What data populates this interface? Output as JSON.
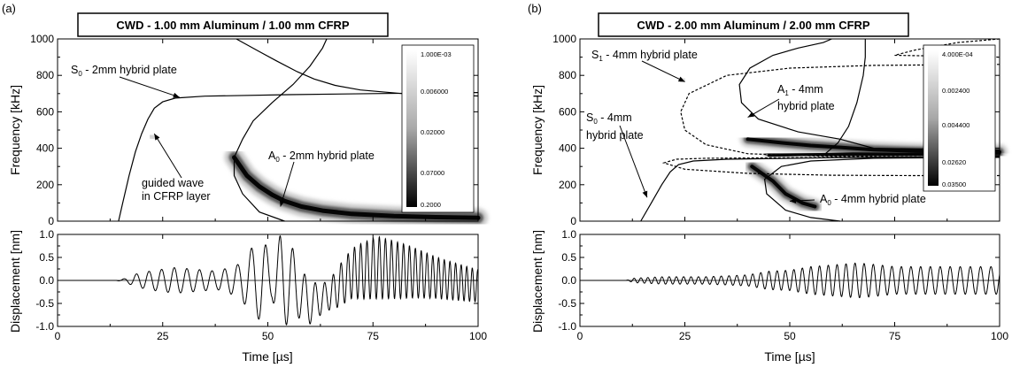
{
  "colors": {
    "axis": "#000000",
    "background": "#ffffff",
    "map_light": "#f2f2f2",
    "map_dark": "#000000"
  },
  "chart_data": [
    {
      "panel_label": "(a)",
      "type": "heatmap",
      "title": "CWD - 1.00 mm Aluminum / 1.00 mm CFRP",
      "xlabel": "Time [µs]",
      "ylabel": "Frequency [kHz]",
      "xlim": [
        0,
        100
      ],
      "ylim": [
        0,
        1000
      ],
      "xticks": [
        0,
        25,
        50,
        75,
        100
      ],
      "yticks": [
        0,
        200,
        400,
        600,
        800,
        1000
      ],
      "colorbar": {
        "labels": [
          "1.000E-03",
          "0.006000",
          "0.02000",
          "0.07000",
          "0.2000"
        ]
      },
      "annotations": [
        {
          "base": "S",
          "sub": "0",
          "rest": " - 2mm hybrid plate",
          "point": [
            29,
            680
          ]
        },
        {
          "base": "A",
          "sub": "0",
          "rest": " - 2mm hybrid plate",
          "point": [
            53,
            80
          ]
        },
        {
          "lines": [
            "guided wave",
            "in CFRP layer"
          ],
          "point": [
            23,
            480
          ]
        }
      ],
      "dispersion_curves": {
        "S0": [
          [
            14.5,
            0
          ],
          [
            15.5,
            100
          ],
          [
            17,
            250
          ],
          [
            18.5,
            380
          ],
          [
            20,
            480
          ],
          [
            21.5,
            560
          ],
          [
            23,
            620
          ],
          [
            25,
            655
          ],
          [
            28,
            675
          ],
          [
            35,
            686
          ],
          [
            55,
            694
          ],
          [
            75,
            700
          ],
          [
            100,
            706
          ]
        ],
        "A0": [
          [
            42.5,
            1000
          ],
          [
            48,
            930
          ],
          [
            52,
            880
          ],
          [
            57,
            820
          ],
          [
            61,
            780
          ],
          [
            66,
            745
          ],
          [
            72,
            720
          ],
          [
            82,
            700
          ],
          [
            100,
            687
          ]
        ],
        "A0_low": [
          [
            54,
            0
          ],
          [
            48,
            50
          ],
          [
            44,
            150
          ],
          [
            42,
            250
          ],
          [
            42,
            350
          ],
          [
            44,
            450
          ],
          [
            46.5,
            550
          ],
          [
            51,
            650
          ],
          [
            56,
            750
          ],
          [
            60,
            850
          ],
          [
            63,
            950
          ],
          [
            64,
            1000
          ]
        ]
      },
      "ridge": [
        [
          42,
          350
        ],
        [
          45,
          250
        ],
        [
          48,
          190
        ],
        [
          51,
          145
        ],
        [
          54,
          110
        ],
        [
          58,
          80
        ],
        [
          63,
          58
        ],
        [
          70,
          40
        ],
        [
          80,
          28
        ],
        [
          90,
          22
        ],
        [
          100,
          18
        ]
      ],
      "spot": [
        [
          22,
          470
        ],
        [
          23,
          455
        ]
      ],
      "displacement": {
        "ylabel": "Displacement [nm]",
        "xlabel": "Time [µs]",
        "xlim": [
          0,
          100
        ],
        "ylim": [
          -1.0,
          1.0
        ],
        "yticks": [
          -1.0,
          -0.5,
          0.0,
          0.5,
          1.0
        ],
        "xticks": [
          0,
          25,
          50,
          75,
          100
        ],
        "envelope": [
          [
            0,
            0
          ],
          [
            14,
            0
          ],
          [
            16,
            0.04
          ],
          [
            19,
            0.15
          ],
          [
            23,
            0.22
          ],
          [
            28,
            0.28
          ],
          [
            33,
            0.24
          ],
          [
            38,
            0.2
          ],
          [
            43,
            0.35
          ],
          [
            47,
            0.8
          ],
          [
            49,
            0.9
          ],
          [
            51,
            0.4
          ],
          [
            53,
            1.0
          ],
          [
            55,
            0.95
          ],
          [
            57,
            0.6
          ],
          [
            60,
            0.45
          ],
          [
            64,
            0.3
          ],
          [
            67,
            0.45
          ],
          [
            72,
            0.6
          ],
          [
            76,
            0.68
          ],
          [
            82,
            0.6
          ],
          [
            90,
            0.45
          ],
          [
            100,
            0.35
          ]
        ],
        "center": [
          [
            0,
            0
          ],
          [
            55,
            0
          ],
          [
            60,
            -0.5
          ],
          [
            65,
            -0.3
          ],
          [
            70,
            0.15
          ],
          [
            76,
            0.28
          ],
          [
            84,
            0.18
          ],
          [
            92,
            0.02
          ],
          [
            100,
            -0.12
          ]
        ],
        "period": [
          [
            0,
            3
          ],
          [
            40,
            3
          ],
          [
            48,
            3.5
          ],
          [
            56,
            3
          ],
          [
            60,
            2.5
          ],
          [
            70,
            1.5
          ],
          [
            100,
            1.3
          ]
        ]
      }
    },
    {
      "panel_label": "(b)",
      "type": "heatmap",
      "title": "CWD - 2.00 mm Aluminum / 2.00 mm CFRP",
      "xlabel": "Time [µs]",
      "ylabel": "Frequency [kHz]",
      "xlim": [
        0,
        100
      ],
      "ylim": [
        0,
        1000
      ],
      "xticks": [
        0,
        25,
        50,
        75,
        100
      ],
      "yticks": [
        0,
        200,
        400,
        600,
        800,
        1000
      ],
      "colorbar": {
        "labels": [
          "4.000E-04",
          "0.002400",
          "0.004400",
          "0.02620",
          "0.03500"
        ]
      },
      "annotations": [
        {
          "base": "S",
          "sub": "1",
          "rest": " - 4mm hybrid plate",
          "point": [
            25,
            765
          ]
        },
        {
          "base": "A",
          "sub": "1",
          "rest": " - 4mm",
          "line2": "hybrid plate",
          "point": [
            40,
            570
          ]
        },
        {
          "base": "S",
          "sub": "0",
          "rest": " - 4mm",
          "line2": "hybrid plate",
          "point": [
            16,
            130
          ]
        },
        {
          "base": "A",
          "sub": "0",
          "rest": " - 4mm hybrid plate",
          "point": [
            50,
            110
          ]
        }
      ],
      "dispersion_curves": {
        "S0": [
          [
            14.5,
            0
          ],
          [
            17,
            100
          ],
          [
            19.5,
            200
          ],
          [
            21.5,
            270
          ],
          [
            23.5,
            310
          ],
          [
            27,
            330
          ],
          [
            35,
            340
          ],
          [
            60,
            348
          ],
          [
            100,
            355
          ]
        ],
        "A1": [
          [
            60,
            1000
          ],
          [
            58,
            980
          ],
          [
            52,
            950
          ],
          [
            46,
            910
          ],
          [
            40.5,
            840
          ],
          [
            38,
            750
          ],
          [
            38.5,
            650
          ],
          [
            42.5,
            560
          ],
          [
            52,
            490
          ],
          [
            62,
            450
          ],
          [
            70,
            400
          ],
          [
            100,
            390
          ]
        ],
        "A1_upper": [
          [
            68,
            1000
          ],
          [
            68,
            900
          ],
          [
            67.5,
            800
          ],
          [
            66,
            650
          ],
          [
            64,
            520
          ],
          [
            61.5,
            430
          ],
          [
            58,
            360
          ],
          [
            100,
            360
          ]
        ],
        "A0_low": [
          [
            62,
            0
          ],
          [
            55,
            20
          ],
          [
            49,
            60
          ],
          [
            44.5,
            150
          ],
          [
            44,
            230
          ],
          [
            48,
            300
          ],
          [
            55,
            330
          ],
          [
            70,
            345
          ],
          [
            100,
            350
          ]
        ],
        "S1_dashed": [
          [
            100,
            1000
          ],
          [
            90,
            980
          ],
          [
            80,
            940
          ],
          [
            75,
            910
          ],
          [
            100,
            900
          ]
        ],
        "S1_upper_dashed": [
          [
            100,
            860
          ],
          [
            70,
            855
          ],
          [
            50,
            840
          ],
          [
            35,
            800
          ],
          [
            26,
            700
          ],
          [
            24,
            600
          ],
          [
            25,
            500
          ],
          [
            30,
            420
          ],
          [
            40,
            370
          ],
          [
            60,
            355
          ],
          [
            100,
            350
          ]
        ],
        "S1_lower_dashed": [
          [
            100,
            250
          ],
          [
            80,
            250
          ],
          [
            60,
            252
          ],
          [
            40,
            262
          ],
          [
            25,
            285
          ],
          [
            20,
            320
          ],
          [
            23,
            340
          ],
          [
            30,
            345
          ],
          [
            60,
            350
          ],
          [
            100,
            352
          ]
        ]
      },
      "ridges": [
        [
          [
            40,
            450
          ],
          [
            48,
            430
          ],
          [
            55,
            415
          ],
          [
            62,
            405
          ],
          [
            70,
            392
          ],
          [
            80,
            385
          ],
          [
            90,
            382
          ],
          [
            100,
            380
          ]
        ],
        [
          [
            41,
            300
          ],
          [
            46,
            220
          ],
          [
            49,
            150
          ],
          [
            53,
            100
          ],
          [
            56,
            80
          ]
        ],
        [
          [
            45,
            360
          ],
          [
            55,
            365
          ],
          [
            65,
            370
          ],
          [
            78,
            368
          ],
          [
            90,
            370
          ],
          [
            100,
            372
          ]
        ]
      ],
      "spot": [
        [
          24,
          780
        ],
        [
          25,
          765
        ]
      ],
      "displacement": {
        "ylabel": "Displacement [nm]",
        "xlabel": "Time [µs]",
        "xlim": [
          0,
          100
        ],
        "ylim": [
          -1.0,
          1.0
        ],
        "yticks": [
          -1.0,
          -0.5,
          0.0,
          0.5,
          1.0
        ],
        "xticks": [
          0,
          25,
          50,
          75,
          100
        ],
        "envelope": [
          [
            0,
            0
          ],
          [
            11,
            0
          ],
          [
            13,
            0.05
          ],
          [
            20,
            0.08
          ],
          [
            30,
            0.08
          ],
          [
            40,
            0.12
          ],
          [
            45,
            0.2
          ],
          [
            50,
            0.22
          ],
          [
            55,
            0.3
          ],
          [
            62,
            0.35
          ],
          [
            66,
            0.38
          ],
          [
            70,
            0.35
          ],
          [
            75,
            0.3
          ],
          [
            85,
            0.3
          ],
          [
            100,
            0.3
          ]
        ],
        "center": [
          [
            0,
            0
          ],
          [
            100,
            0
          ]
        ],
        "period": [
          [
            0,
            1.5
          ],
          [
            100,
            2.5
          ]
        ]
      }
    }
  ]
}
